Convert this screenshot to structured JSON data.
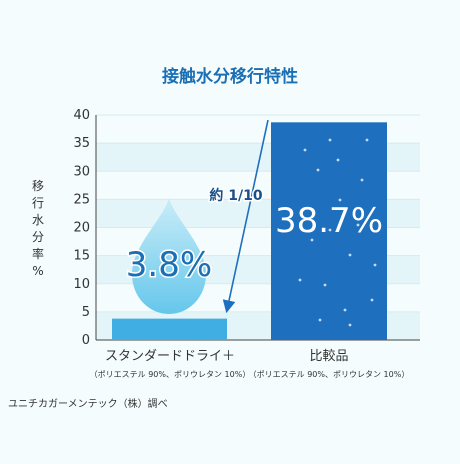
{
  "chart_data": {
    "type": "bar",
    "title": "接触水分移行特性",
    "ylabel": "移行水分率 %",
    "ylim": [
      0,
      40
    ],
    "yticks": [
      "0",
      "5",
      "10",
      "15",
      "20",
      "25",
      "30",
      "35",
      "40"
    ],
    "categories": [
      "スタンダードドライ＋",
      "比較品"
    ],
    "category_notes": [
      "（ポリエステル 90%、ポリウレタン 10%）",
      "（ポリエステル 90%、ポリウレタン 10%）"
    ],
    "values": [
      3.8,
      38.7
    ],
    "value_labels": [
      "3.8%",
      "38.7%"
    ],
    "annotation": "約 1/10",
    "grid": true,
    "colors": {
      "bar_a": "#41aee3",
      "bar_b": "#1e6fbe",
      "title": "#1b6fb5",
      "drop_top": "#c8ecf8",
      "drop_bottom": "#5ec4ea",
      "arrow": "#1e6fbe"
    }
  },
  "source_note": "ユニチカガーメンテック（株）調べ"
}
